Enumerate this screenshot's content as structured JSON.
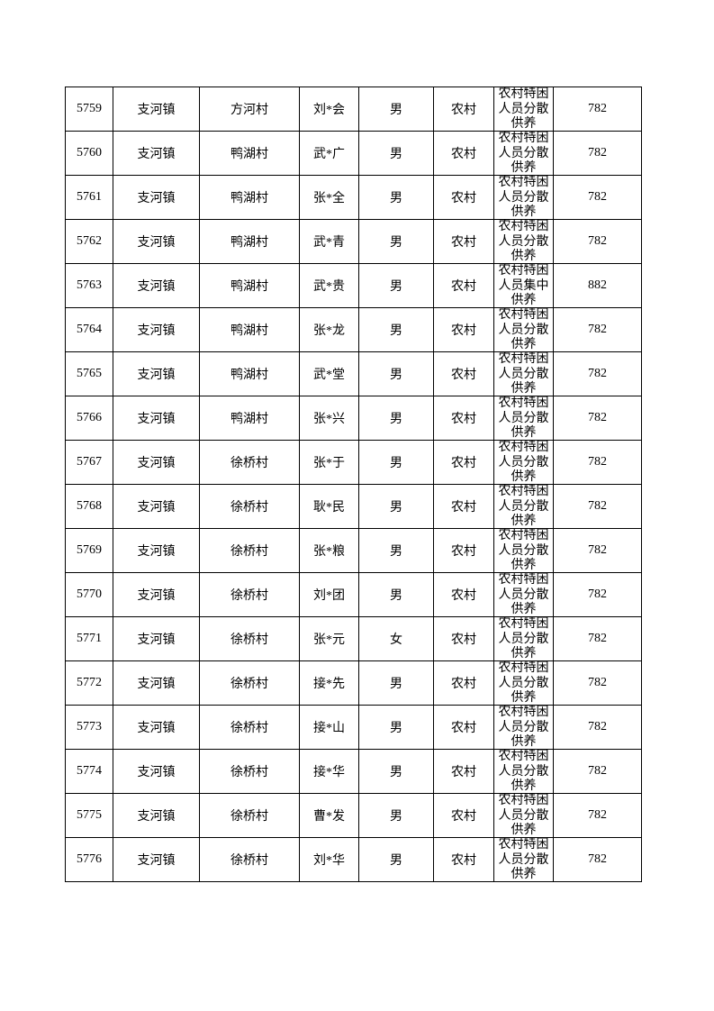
{
  "table": {
    "rows": [
      [
        "5759",
        "支河镇",
        "方河村",
        "刘*会",
        "男",
        "农村",
        "农村特困人员分散供养",
        "782"
      ],
      [
        "5760",
        "支河镇",
        "鸭湖村",
        "武*广",
        "男",
        "农村",
        "农村特困人员分散供养",
        "782"
      ],
      [
        "5761",
        "支河镇",
        "鸭湖村",
        "张*全",
        "男",
        "农村",
        "农村特困人员分散供养",
        "782"
      ],
      [
        "5762",
        "支河镇",
        "鸭湖村",
        "武*青",
        "男",
        "农村",
        "农村特困人员分散供养",
        "782"
      ],
      [
        "5763",
        "支河镇",
        "鸭湖村",
        "武*贵",
        "男",
        "农村",
        "农村特困人员集中供养",
        "882"
      ],
      [
        "5764",
        "支河镇",
        "鸭湖村",
        "张*龙",
        "男",
        "农村",
        "农村特困人员分散供养",
        "782"
      ],
      [
        "5765",
        "支河镇",
        "鸭湖村",
        "武*堂",
        "男",
        "农村",
        "农村特困人员分散供养",
        "782"
      ],
      [
        "5766",
        "支河镇",
        "鸭湖村",
        "张*兴",
        "男",
        "农村",
        "农村特困人员分散供养",
        "782"
      ],
      [
        "5767",
        "支河镇",
        "徐桥村",
        "张*于",
        "男",
        "农村",
        "农村特困人员分散供养",
        "782"
      ],
      [
        "5768",
        "支河镇",
        "徐桥村",
        "耿*民",
        "男",
        "农村",
        "农村特困人员分散供养",
        "782"
      ],
      [
        "5769",
        "支河镇",
        "徐桥村",
        "张*粮",
        "男",
        "农村",
        "农村特困人员分散供养",
        "782"
      ],
      [
        "5770",
        "支河镇",
        "徐桥村",
        "刘*团",
        "男",
        "农村",
        "农村特困人员分散供养",
        "782"
      ],
      [
        "5771",
        "支河镇",
        "徐桥村",
        "张*元",
        "女",
        "农村",
        "农村特困人员分散供养",
        "782"
      ],
      [
        "5772",
        "支河镇",
        "徐桥村",
        "接*先",
        "男",
        "农村",
        "农村特困人员分散供养",
        "782"
      ],
      [
        "5773",
        "支河镇",
        "徐桥村",
        "接*山",
        "男",
        "农村",
        "农村特困人员分散供养",
        "782"
      ],
      [
        "5774",
        "支河镇",
        "徐桥村",
        "接*华",
        "男",
        "农村",
        "农村特困人员分散供养",
        "782"
      ],
      [
        "5775",
        "支河镇",
        "徐桥村",
        "曹*发",
        "男",
        "农村",
        "农村特困人员分散供养",
        "782"
      ],
      [
        "5776",
        "支河镇",
        "徐桥村",
        "刘*华",
        "男",
        "农村",
        "农村特困人员分散供养",
        "782"
      ]
    ]
  }
}
